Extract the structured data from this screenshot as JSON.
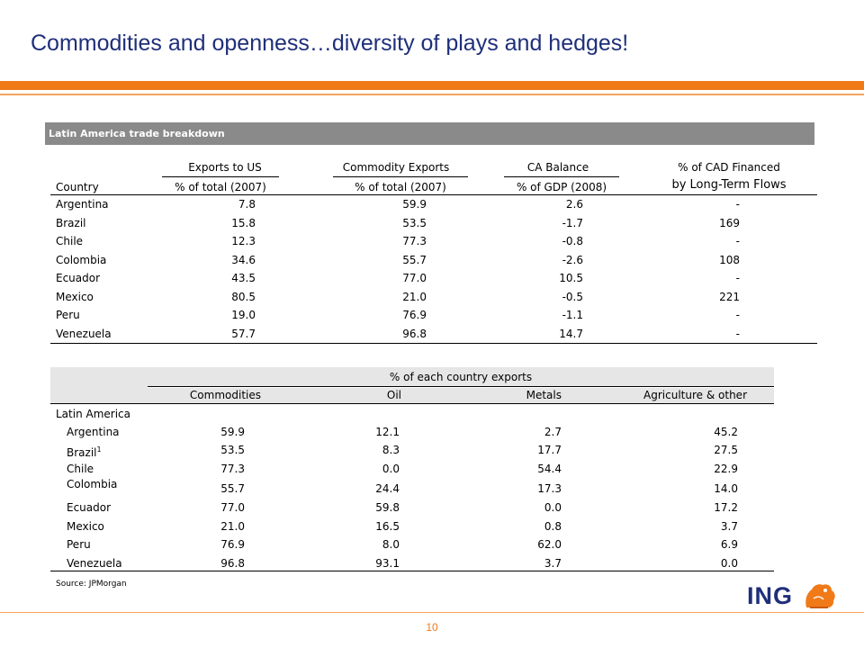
{
  "title": "Commodities and openness…diversity of plays and hedges!",
  "section_header": "Latin America trade breakdown",
  "table1": {
    "headers_top": [
      "Exports to US",
      "Commodity Exports",
      "CA Balance",
      "% of CAD Financed"
    ],
    "headers_bottom": [
      "Country",
      "% of total (2007)",
      "% of total (2007)",
      "% of  GDP (2008)",
      "by Long-Term Flows"
    ],
    "rows": [
      {
        "country": "Argentina",
        "exports_us": "7.8",
        "commodity": "59.9",
        "ca": "2.6",
        "cad": "-"
      },
      {
        "country": "Brazil",
        "exports_us": "15.8",
        "commodity": "53.5",
        "ca": "-1.7",
        "cad": "169"
      },
      {
        "country": "Chile",
        "exports_us": "12.3",
        "commodity": "77.3",
        "ca": "-0.8",
        "cad": "-"
      },
      {
        "country": "Colombia",
        "exports_us": "34.6",
        "commodity": "55.7",
        "ca": "-2.6",
        "cad": "108"
      },
      {
        "country": "Ecuador",
        "exports_us": "43.5",
        "commodity": "77.0",
        "ca": "10.5",
        "cad": "-"
      },
      {
        "country": "Mexico",
        "exports_us": "80.5",
        "commodity": "21.0",
        "ca": "-0.5",
        "cad": "221"
      },
      {
        "country": "Peru",
        "exports_us": "19.0",
        "commodity": "76.9",
        "ca": "-1.1",
        "cad": "-"
      },
      {
        "country": "Venezuela",
        "exports_us": "57.7",
        "commodity": "96.8",
        "ca": "14.7",
        "cad": "-"
      }
    ]
  },
  "table2": {
    "super_header": "% of each country exports",
    "headers": [
      "Commodities",
      "Oil",
      "Metals",
      "Agriculture & other"
    ],
    "group_label": "Latin America",
    "footnote_mark": "1",
    "rows": [
      {
        "country": "Argentina",
        "commodities": "59.9",
        "oil": "12.1",
        "metals": "2.7",
        "agri": "45.2"
      },
      {
        "country": "Brazil",
        "commodities": "53.5",
        "oil": "8.3",
        "metals": "17.7",
        "agri": "27.5"
      },
      {
        "country": "Chile",
        "commodities": "77.3",
        "oil": "0.0",
        "metals": "54.4",
        "agri": "22.9"
      },
      {
        "country": "Colombia",
        "commodities": "55.7",
        "oil": "24.4",
        "metals": "17.3",
        "agri": "14.0"
      },
      {
        "country": "Ecuador",
        "commodities": "77.0",
        "oil": "59.8",
        "metals": "0.0",
        "agri": "17.2"
      },
      {
        "country": "Mexico",
        "commodities": "21.0",
        "oil": "16.5",
        "metals": "0.8",
        "agri": "3.7"
      },
      {
        "country": "Peru",
        "commodities": "76.9",
        "oil": "8.0",
        "metals": "62.0",
        "agri": "6.9"
      },
      {
        "country": "Venezuela",
        "commodities": "96.8",
        "oil": "93.1",
        "metals": "3.7",
        "agri": "0.0"
      }
    ]
  },
  "source": "Source: JPMorgan",
  "page_number": "10",
  "logo": {
    "text": "ING",
    "icon": "lion-icon"
  },
  "colors": {
    "title": "#1f2f7a",
    "accent": "#f07a18",
    "header_gray": "#8a8a8a"
  }
}
